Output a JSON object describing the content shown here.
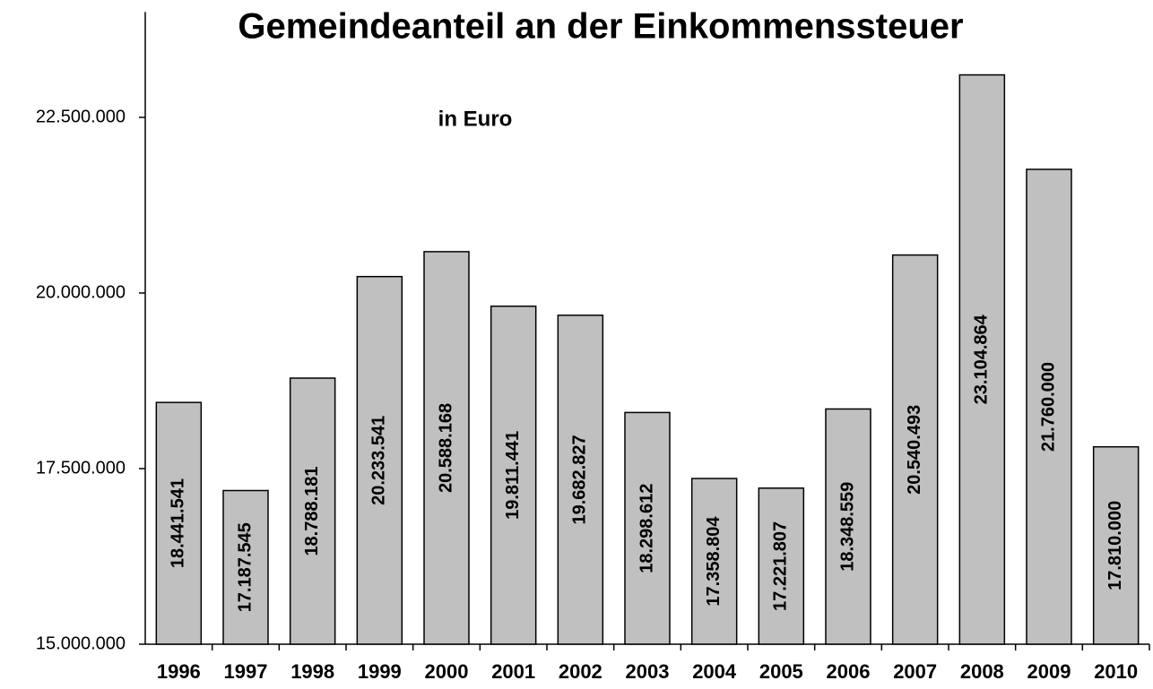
{
  "chart_data": {
    "type": "bar",
    "title": "Gemeindeanteil an der Einkommenssteuer",
    "subtitle": "in Euro",
    "categories": [
      "1996",
      "1997",
      "1998",
      "1999",
      "2000",
      "2001",
      "2002",
      "2003",
      "2004",
      "2005",
      "2006",
      "2007",
      "2008",
      "2009",
      "2010"
    ],
    "values": [
      18441541,
      17187545,
      18788181,
      20233541,
      20588168,
      19811441,
      19682827,
      18298612,
      17358804,
      17221807,
      18348559,
      20540493,
      23104864,
      21760000,
      17810000
    ],
    "value_labels": [
      "18.441.541",
      "17.187.545",
      "18.788.181",
      "20.233.541",
      "20.588.168",
      "19.811.441",
      "19.682.827",
      "18.298.612",
      "17.358.804",
      "17.221.807",
      "18.348.559",
      "20.540.493",
      "23.104.864",
      "21.760.000",
      "17.810.000"
    ],
    "color": "#c0c0c0",
    "ylim": [
      15000000,
      24000000
    ],
    "yticks": [
      {
        "value": 15000000,
        "label": "15.000.000"
      },
      {
        "value": 17500000,
        "label": "17.500.000"
      },
      {
        "value": 20000000,
        "label": "20.000.000"
      },
      {
        "value": 22500000,
        "label": "22.500.000"
      }
    ],
    "grid": false
  }
}
